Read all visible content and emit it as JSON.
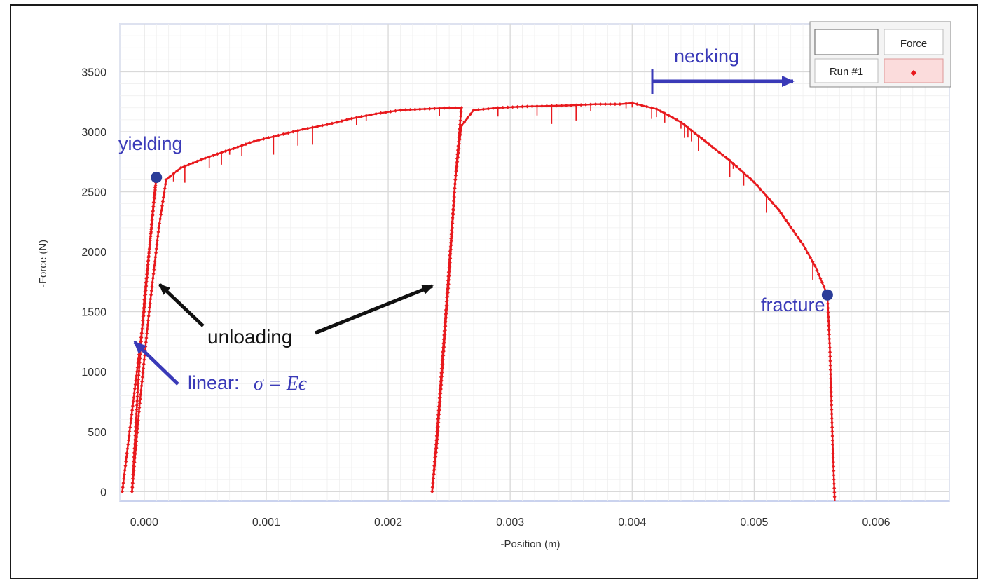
{
  "chart_data": {
    "type": "scatter",
    "xlabel": "-Position (m)",
    "ylabel": "-Force (N)",
    "xlim": [
      -0.0002,
      0.0066
    ],
    "ylim": [
      -80,
      3900
    ],
    "xticks": [
      "0.000",
      "0.001",
      "0.002",
      "0.003",
      "0.004",
      "0.005",
      "0.006"
    ],
    "xtick_values": [
      0,
      0.001,
      0.002,
      0.003,
      0.004,
      0.005,
      0.006
    ],
    "yticks": [
      "0",
      "500",
      "1000",
      "1500",
      "2000",
      "2500",
      "3000",
      "3500"
    ],
    "ytick_values": [
      0,
      500,
      1000,
      1500,
      2000,
      2500,
      3000,
      3500
    ],
    "grid": true,
    "legend": {
      "placement": "top-right",
      "column_header": "Force",
      "row_label": "Run #1",
      "marker": "◆"
    },
    "series": [
      {
        "name": "Run #1",
        "color": "#e8191d",
        "segments": [
          {
            "x": [
              -0.00018,
              -0.00012,
              -6e-05,
              0.0,
              4e-05,
              8e-05,
              0.0001
            ],
            "y": [
              0,
              500,
              1000,
              1500,
              2000,
              2450,
              2620
            ]
          },
          {
            "x": [
              0.0001,
              6e-05,
              0.0,
              -5e-05,
              -0.0001
            ],
            "y": [
              2620,
              2200,
              1600,
              900,
              0
            ]
          },
          {
            "x": [
              -0.0001,
              -4e-05,
              4e-05,
              0.00012,
              0.00018
            ],
            "y": [
              0,
              700,
              1500,
              2200,
              2600
            ]
          },
          {
            "x": [
              0.00018,
              0.0003,
              0.0005,
              0.0007,
              0.0009,
              0.0011,
              0.0013,
              0.0015,
              0.0017,
              0.0019,
              0.0021,
              0.0023,
              0.0025,
              0.0026
            ],
            "y": [
              2600,
              2700,
              2780,
              2850,
              2920,
              2970,
              3020,
              3060,
              3110,
              3150,
              3180,
              3190,
              3200,
              3200
            ]
          },
          {
            "x": [
              0.0026,
              0.00255,
              0.0025,
              0.00245,
              0.0024,
              0.00236
            ],
            "y": [
              3200,
              2600,
              1800,
              1100,
              400,
              0
            ]
          },
          {
            "x": [
              0.00236,
              0.0024,
              0.00245,
              0.0025,
              0.00255,
              0.0026,
              0.0027
            ],
            "y": [
              0,
              500,
              1200,
              1900,
              2600,
              3050,
              3180
            ]
          },
          {
            "x": [
              0.0027,
              0.0029,
              0.0031,
              0.0033,
              0.0035,
              0.0037,
              0.0039,
              0.004,
              0.0042,
              0.0044,
              0.0046,
              0.0048,
              0.005,
              0.0052,
              0.0054,
              0.0055,
              0.0056
            ],
            "y": [
              3180,
              3200,
              3210,
              3215,
              3220,
              3230,
              3230,
              3240,
              3190,
              3080,
              2920,
              2760,
              2580,
              2350,
              2060,
              1880,
              1640
            ]
          },
          {
            "x": [
              0.0056,
              0.00562,
              0.00564,
              0.00566
            ],
            "y": [
              1640,
              1200,
              500,
              -80
            ]
          }
        ]
      }
    ],
    "annotations": [
      {
        "text": "yielding",
        "x": 0.0001,
        "y": 2620
      },
      {
        "text": "fracture",
        "x": 0.0056,
        "y": 1640
      },
      {
        "text": "necking",
        "x": 0.004,
        "y": 3450
      },
      {
        "text": "unloading"
      },
      {
        "text": "linear:",
        "math": "σ = Eϵ"
      }
    ]
  }
}
